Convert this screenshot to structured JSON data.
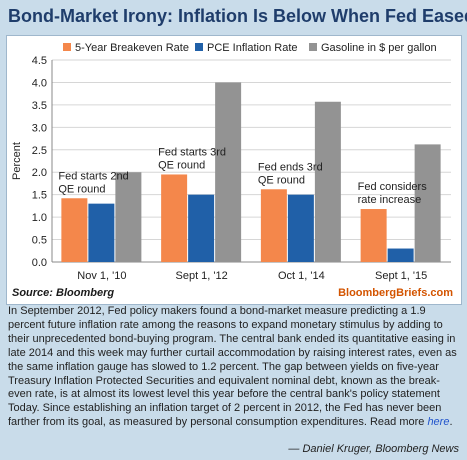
{
  "header": {
    "title": "Bond-Market Irony: Inflation Is Below When Fed Eased"
  },
  "chart_data": {
    "type": "bar",
    "title": "Bond-Market Irony: Inflation Is Below When Fed Eased",
    "ylabel": "Percent",
    "xlabel": "",
    "ylim": [
      0,
      4.5
    ],
    "yticks": [
      "0.0",
      "0.5",
      "1.0",
      "1.5",
      "2.0",
      "2.5",
      "3.0",
      "3.5",
      "4.0",
      "4.5"
    ],
    "grid": true,
    "legend": "top",
    "categories": [
      "Nov 1, '10",
      "Sept 1, '12",
      "Oct 1, '14",
      "Sept 1, '15"
    ],
    "series": [
      {
        "name": "5-Year Breakeven Rate",
        "color": "#f4874b",
        "values": [
          1.42,
          1.95,
          1.62,
          1.18
        ]
      },
      {
        "name": "PCE Inflation Rate",
        "color": "#2060a8",
        "values": [
          1.3,
          1.5,
          1.5,
          0.3
        ]
      },
      {
        "name": "Gasoline in $ per gallon",
        "color": "#939393",
        "values": [
          2.0,
          4.0,
          3.57,
          2.62
        ]
      }
    ],
    "annotations": [
      {
        "lines": [
          "Fed starts 2nd",
          "QE round"
        ]
      },
      {
        "lines": [
          "Fed starts 3rd",
          "QE round"
        ]
      },
      {
        "lines": [
          "Fed ends 3rd",
          "QE round"
        ]
      },
      {
        "lines": [
          "Fed considers",
          "rate increase"
        ]
      }
    ]
  },
  "footer": {
    "source": "Source: Bloomberg",
    "brand": "BloombergBriefs.com"
  },
  "article": {
    "text": "In September 2012, Fed policy makers found a bond-market measure predicting a 1.9 percent future inflation rate among the reasons to expand monetary stimulus by adding to their unprecedented bond-buying program. The central bank ended its quantitative easing in late 2014 and this week may further curtail accommodation by raising interest rates, even as the same inflation gauge has slowed to 1.2 percent. The gap between yields on five-year Treasury Inflation Protected Securities and equivalent nominal debt, known as the break-even rate, is at almost its lowest level this year before the central bank's policy statement Today. Since establishing an inflation target of 2 percent in 2012, the Fed has never been farther from its goal, as measured by personal consumption expenditures. Read more ",
    "link_label": "here",
    "end": ".",
    "byline": "— Daniel Kruger, Bloomberg News"
  }
}
